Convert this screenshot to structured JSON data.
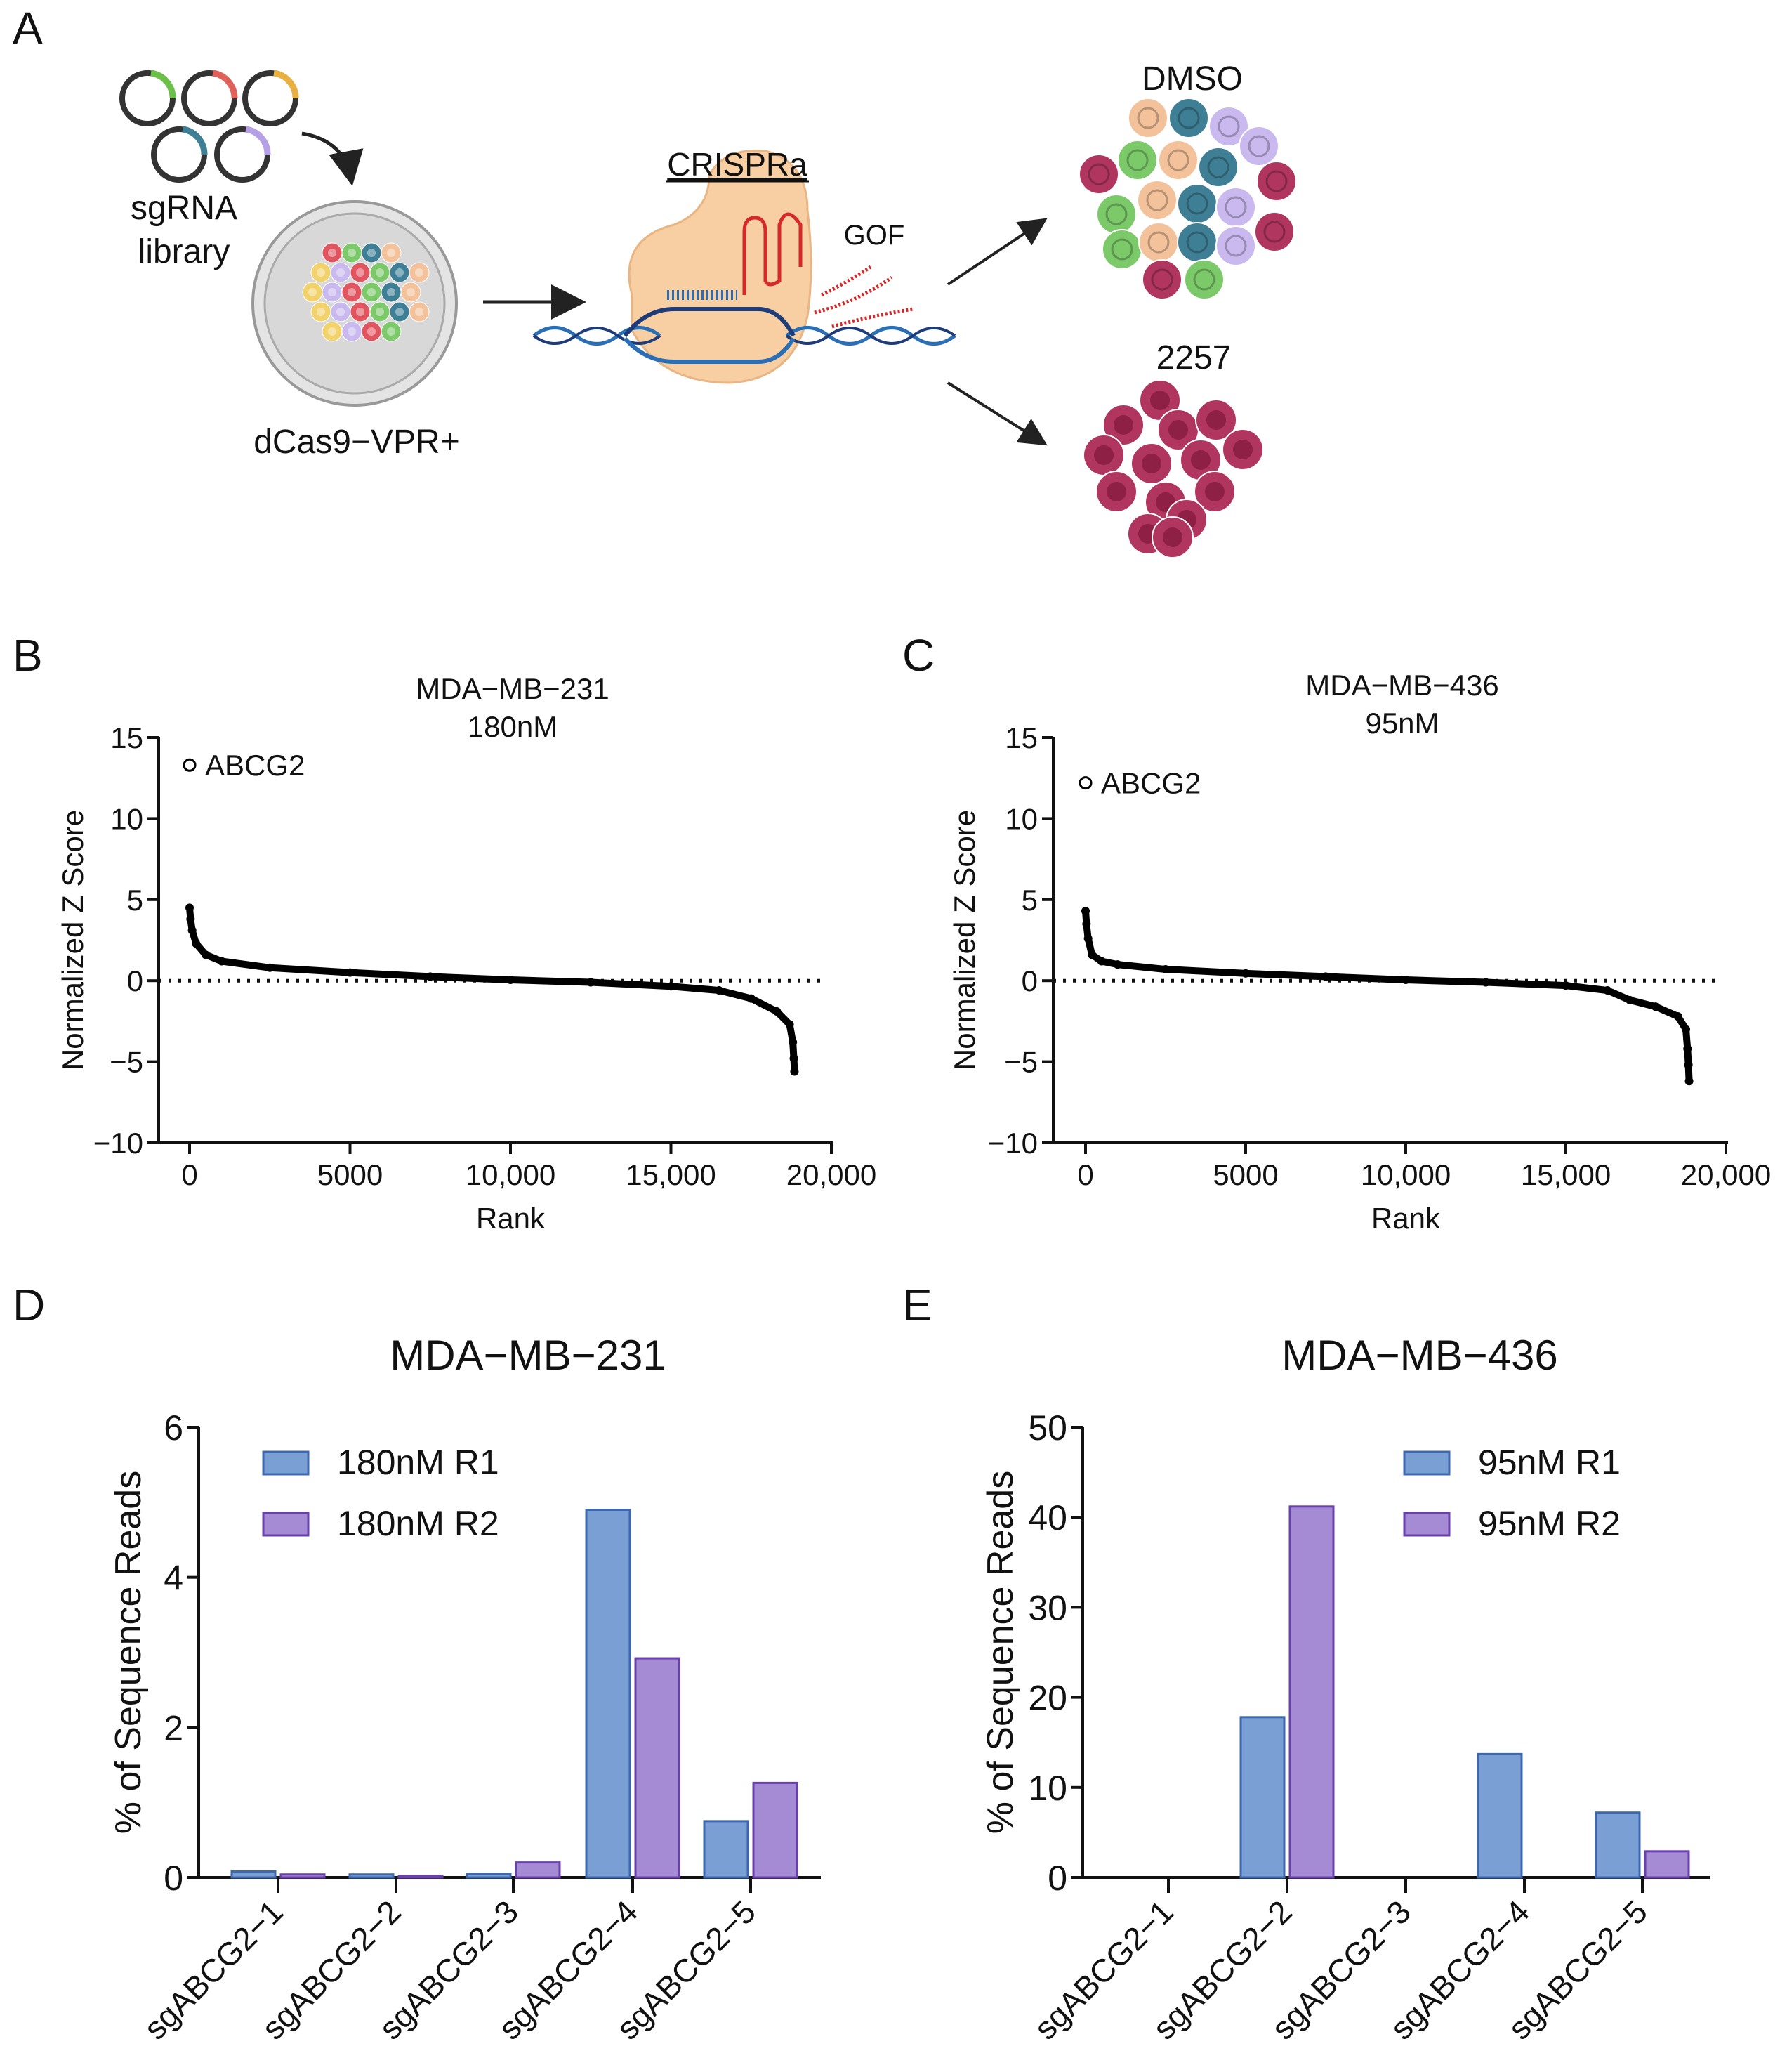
{
  "panel_a": {
    "letter": "A",
    "library_line1": "sgRNA",
    "library_line2": "library",
    "cell_line_label": "dCas9−VPR+",
    "method_label": "CRISPRa",
    "gof_label": "GOF",
    "condition_1": "DMSO",
    "condition_2": "2257",
    "colors": {
      "peach": "#f3c29b",
      "lavender": "#c9b9ee",
      "green": "#7cc96a",
      "teal": "#3f7f95",
      "magenta": "#b0365f",
      "red": "#e05560",
      "yellow": "#f2d36b",
      "dna": "#2a6fb5",
      "cas9": "#f7cfa3",
      "guide": "#d62a2a"
    }
  },
  "chart_data": [
    {
      "panel": "B",
      "type": "scatter",
      "title": [
        "MDA−MB−231",
        "180nM"
      ],
      "xlabel": "Rank",
      "ylabel": "Normalized Z Score",
      "xlim": [
        0,
        20000
      ],
      "ylim": [
        -10,
        15
      ],
      "xticks": [
        0,
        5000,
        10000,
        15000,
        20000
      ],
      "xtick_labels": [
        "0",
        "5000",
        "10,000",
        "15,000",
        "20,000"
      ],
      "yticks": [
        15,
        10,
        5,
        0,
        -5,
        -10
      ],
      "ytick_labels": [
        "15",
        "10",
        "5",
        "0",
        "−5",
        "−10"
      ],
      "reference_line_y": 0,
      "highlight": {
        "label": "ABCG2",
        "x": 0,
        "y": 13.3
      },
      "points": [
        [
          0,
          4.5
        ],
        [
          30,
          3.8
        ],
        [
          80,
          3.1
        ],
        [
          200,
          2.3
        ],
        [
          500,
          1.6
        ],
        [
          1000,
          1.2
        ],
        [
          2500,
          0.8
        ],
        [
          5000,
          0.5
        ],
        [
          7500,
          0.25
        ],
        [
          10000,
          0.05
        ],
        [
          12500,
          -0.1
        ],
        [
          15000,
          -0.35
        ],
        [
          16500,
          -0.6
        ],
        [
          17500,
          -1.1
        ],
        [
          18300,
          -1.9
        ],
        [
          18700,
          -2.7
        ],
        [
          18800,
          -3.8
        ],
        [
          18830,
          -4.8
        ],
        [
          18850,
          -5.6
        ]
      ]
    },
    {
      "panel": "C",
      "type": "scatter",
      "title": [
        "MDA−MB−436",
        "95nM"
      ],
      "xlabel": "Rank",
      "ylabel": "Normalized Z Score",
      "xlim": [
        0,
        20000
      ],
      "ylim": [
        -10,
        15
      ],
      "xticks": [
        0,
        5000,
        10000,
        15000,
        20000
      ],
      "xtick_labels": [
        "0",
        "5000",
        "10,000",
        "15,000",
        "20,000"
      ],
      "yticks": [
        15,
        10,
        5,
        0,
        -5,
        -10
      ],
      "ytick_labels": [
        "15",
        "10",
        "5",
        "0",
        "−5",
        "−10"
      ],
      "reference_line_y": 0,
      "highlight": {
        "label": "ABCG2",
        "x": 0,
        "y": 12.2
      },
      "points": [
        [
          0,
          4.3
        ],
        [
          30,
          3.5
        ],
        [
          80,
          2.6
        ],
        [
          200,
          1.6
        ],
        [
          500,
          1.2
        ],
        [
          1000,
          1.0
        ],
        [
          2500,
          0.7
        ],
        [
          5000,
          0.45
        ],
        [
          7500,
          0.25
        ],
        [
          10000,
          0.05
        ],
        [
          12500,
          -0.1
        ],
        [
          15000,
          -0.3
        ],
        [
          16300,
          -0.6
        ],
        [
          17000,
          -1.2
        ],
        [
          17800,
          -1.6
        ],
        [
          18500,
          -2.2
        ],
        [
          18750,
          -3.0
        ],
        [
          18800,
          -4.2
        ],
        [
          18830,
          -5.2
        ],
        [
          18850,
          -6.2
        ]
      ]
    },
    {
      "panel": "D",
      "type": "bar",
      "title": "MDA−MB−231",
      "ylabel": "% of Sequence Reads",
      "ylim": [
        0,
        6
      ],
      "yticks": [
        0,
        2,
        4,
        6
      ],
      "categories": [
        "sgABCG2−1",
        "sgABCG2−2",
        "sgABCG2−3",
        "sgABCG2−4",
        "sgABCG2−5"
      ],
      "legend_position": "top-left",
      "series": [
        {
          "name": "180nM R1",
          "color": "#7a9fd4",
          "edge": "#3d68b0",
          "values": [
            0.08,
            0.04,
            0.05,
            4.9,
            0.75
          ]
        },
        {
          "name": "180nM R2",
          "color": "#a58ad4",
          "edge": "#6a3fae",
          "values": [
            0.04,
            0.02,
            0.2,
            2.92,
            1.26
          ]
        }
      ]
    },
    {
      "panel": "E",
      "type": "bar",
      "title": "MDA−MB−436",
      "ylabel": "% of Sequence Reads",
      "ylim": [
        0,
        50
      ],
      "yticks": [
        0,
        10,
        20,
        30,
        40,
        50
      ],
      "categories": [
        "sgABCG2−1",
        "sgABCG2−2",
        "sgABCG2−3",
        "sgABCG2−4",
        "sgABCG2−5"
      ],
      "legend_position": "top-right",
      "series": [
        {
          "name": "95nM  R1",
          "color": "#7a9fd4",
          "edge": "#3d68b0",
          "values": [
            0,
            17.8,
            0,
            13.7,
            7.2
          ]
        },
        {
          "name": "95nM  R2",
          "color": "#a58ad4",
          "edge": "#6a3fae",
          "values": [
            0,
            41.2,
            0,
            0,
            2.9
          ]
        }
      ]
    }
  ]
}
